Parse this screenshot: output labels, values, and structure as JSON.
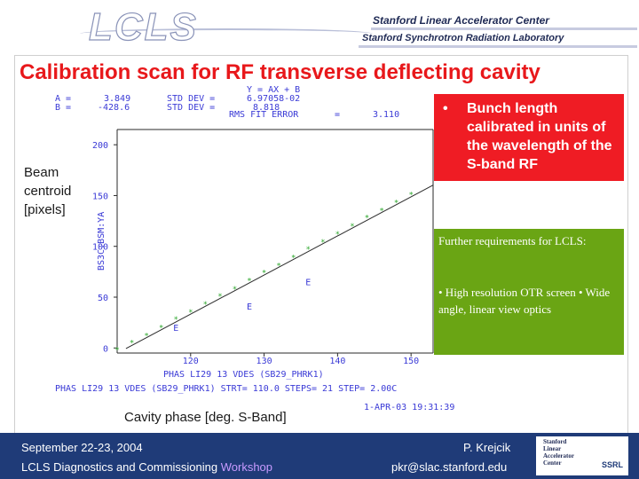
{
  "header": {
    "logo_text": "LCLS",
    "org_line1": "Stanford Linear Accelerator Center",
    "org_line2": "Stanford Synchrotron Radiation Laboratory"
  },
  "title": "Calibration scan for RF transverse deflecting cavity",
  "red_box": {
    "bullet": "•",
    "text": "Bunch length calibrated in units of the wavelength of the S-band RF"
  },
  "green_box": {
    "paragraph1": "Further requirements for LCLS:",
    "paragraph2": "• High resolution OTR screen • Wide angle, linear view optics"
  },
  "ylabel": {
    "line1": "Beam",
    "line2": "centroid",
    "line3": "[pixels]"
  },
  "xlabel": "Cavity phase [deg. S-Band]",
  "plot": {
    "stats": {
      "a_label": "A =",
      "a_value": "3.849",
      "b_label": "B =",
      "b_value": "-428.6",
      "std_label1": "STD DEV =",
      "std_value1": "6.97058-02",
      "std_label2": "STD DEV =",
      "std_value2": "8.818",
      "fit_eq": "Y = AX + B",
      "rms_label": "RMS FIT ERROR",
      "rms_eq": "=",
      "rms_value": "3.110"
    },
    "y_axis_title": "BS3C:BSM:YA",
    "y_ticks": [
      "200",
      "150",
      "100",
      "50",
      "0"
    ],
    "x_ticks": [
      "120",
      "130",
      "140",
      "150"
    ],
    "x_axis_title": "PHAS LI29 13 VDES (SB29_PHRK1)",
    "scan_line": "PHAS LI29 13 VDES (SB29_PHRK1)   STRT= 110.0 STEPS= 21 STEP= 2.00C",
    "timestamp": "1-APR-03 19:31:39",
    "marker_label": "E"
  },
  "chart_data": {
    "type": "scatter",
    "title": "",
    "xlabel": "Cavity phase [deg. S-Band]",
    "ylabel": "Beam centroid [pixels]",
    "xlim": [
      110,
      153
    ],
    "ylim": [
      -5,
      215
    ],
    "series": [
      {
        "x": [
          110,
          112,
          114,
          116,
          118,
          120,
          122,
          124,
          126,
          128,
          130,
          132,
          134,
          136,
          138,
          140,
          142,
          144,
          146,
          148,
          150
        ],
        "y": [
          -2,
          5,
          12,
          20,
          28,
          35,
          43,
          51,
          58,
          66,
          74,
          81,
          89,
          97,
          104,
          112,
          120,
          128,
          135,
          143,
          151
        ]
      }
    ],
    "fit": {
      "type": "linear",
      "slope": 3.849,
      "intercept": -428.6
    }
  },
  "footer": {
    "date": "September 22-23, 2004",
    "name": "P. Krejcik",
    "title_main": "LCLS Diagnostics and Commissioning ",
    "title_highlight": "Workshop",
    "email": "pkr@slac.stanford.edu",
    "badge_line1": "Stanford",
    "badge_line2": "Linear",
    "badge_line3": "Accelerator",
    "badge_line4": "Center",
    "ssrl": "SSRL"
  },
  "colors": {
    "title": "#e8181b",
    "red_box": "#ef1c24",
    "green_box": "#6aa514",
    "footer": "#1f3b78",
    "plot_text": "#3a3ad6",
    "fit_line": "#2a2a2a"
  }
}
